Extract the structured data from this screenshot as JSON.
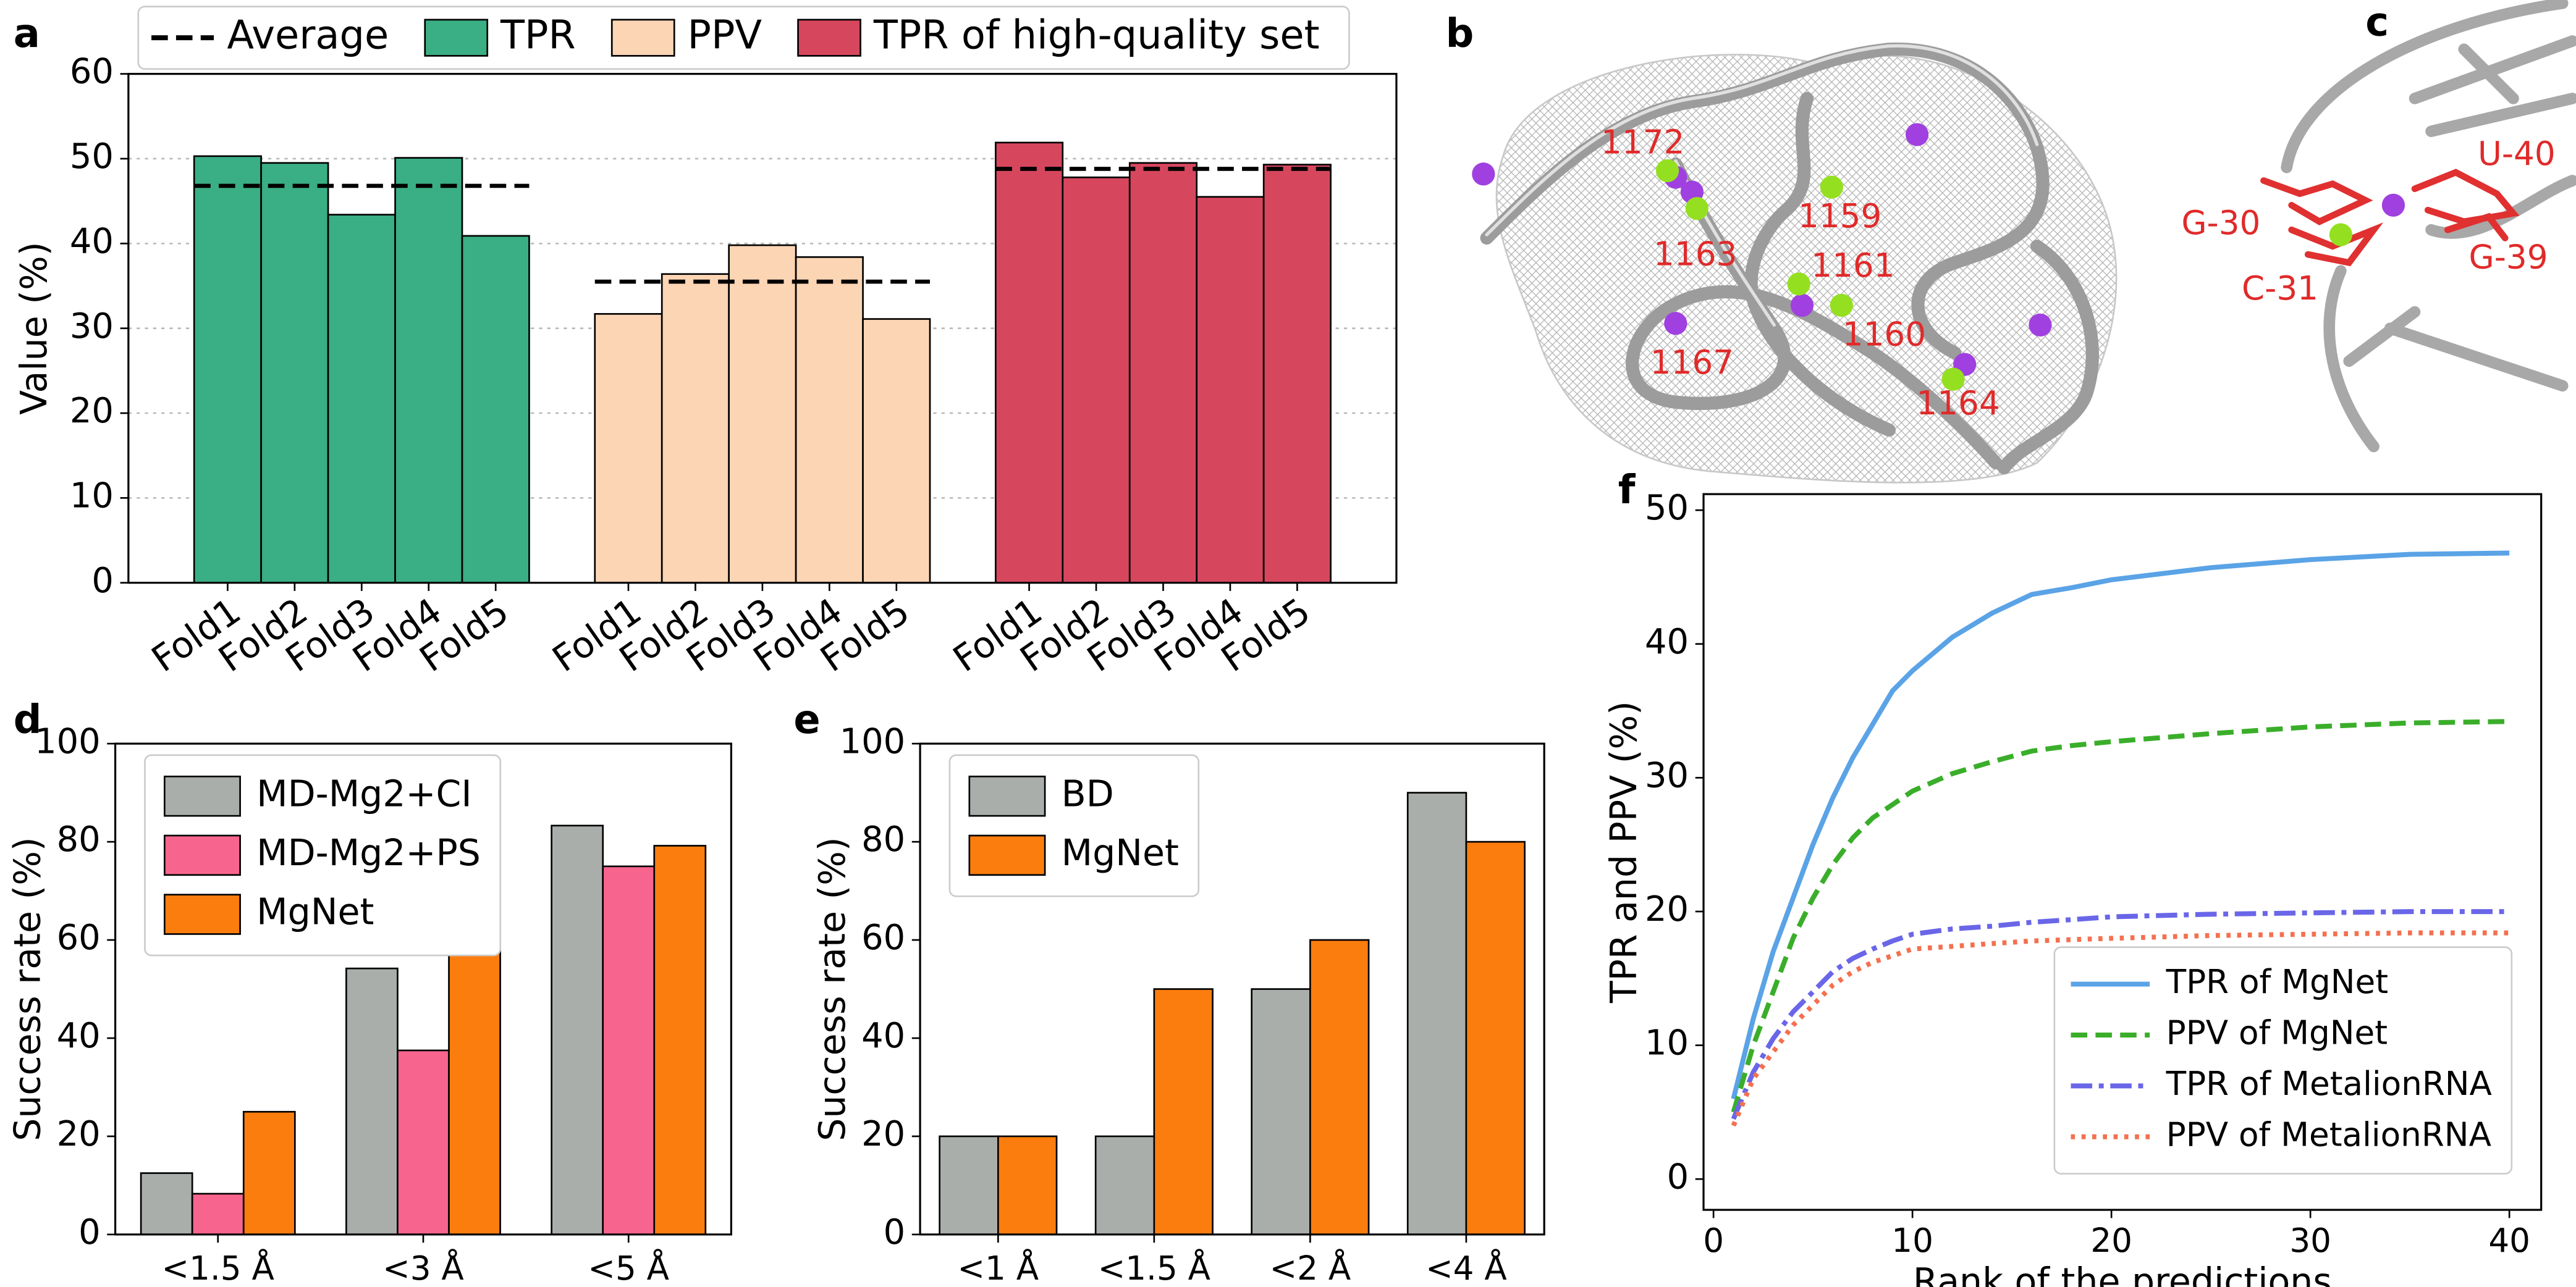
{
  "chart_data": [
    {
      "panel_label": "a",
      "type": "bar",
      "ylabel": "Value (%)",
      "categories": [
        "Fold1",
        "Fold2",
        "Fold3",
        "Fold4",
        "Fold5"
      ],
      "average_label": "Average",
      "series": [
        {
          "name": "TPR",
          "color": "#3aae84",
          "values": [
            50.3,
            49.5,
            43.4,
            50.1,
            40.9
          ],
          "average": 46.8
        },
        {
          "name": "PPV",
          "color": "#fcd5b4",
          "values": [
            31.7,
            36.4,
            39.8,
            38.4,
            31.1
          ],
          "average": 35.5
        },
        {
          "name": "TPR of high-quality set",
          "color": "#d6475e",
          "values": [
            51.9,
            47.8,
            49.5,
            45.5,
            49.3
          ],
          "average": 48.8
        }
      ],
      "ylim": [
        0,
        60
      ],
      "yticks": [
        0,
        10,
        20,
        30,
        40,
        50,
        60
      ],
      "grid": true,
      "legend": "top"
    },
    {
      "panel_label": "d",
      "type": "bar",
      "ylabel": "Success rate (%)",
      "categories": [
        "<1.5 Å",
        "<3 Å",
        "<5 Å"
      ],
      "series": [
        {
          "name": "MD-Mg2+CI",
          "color": "#a9aeab",
          "values": [
            12.5,
            54.2,
            83.3
          ]
        },
        {
          "name": "MD-Mg2+PS",
          "color": "#f7658e",
          "values": [
            8.3,
            37.5,
            75.0
          ]
        },
        {
          "name": "MgNet",
          "color": "#fb7d0e",
          "values": [
            25.0,
            58.3,
            79.2
          ]
        }
      ],
      "ylim": [
        0,
        100
      ],
      "yticks": [
        0,
        20,
        40,
        60,
        80,
        100
      ],
      "grid": false,
      "legend": "upper left"
    },
    {
      "panel_label": "e",
      "type": "bar",
      "ylabel": "Success rate (%)",
      "categories": [
        "<1 Å",
        "<1.5 Å",
        "<2 Å",
        "<4 Å"
      ],
      "series": [
        {
          "name": "BD",
          "color": "#a9aeab",
          "values": [
            20,
            20,
            50,
            90
          ]
        },
        {
          "name": "MgNet",
          "color": "#fb7d0e",
          "values": [
            20,
            50,
            60,
            80
          ]
        }
      ],
      "ylim": [
        0,
        100
      ],
      "yticks": [
        0,
        20,
        40,
        60,
        80,
        100
      ],
      "grid": false,
      "legend": "upper left"
    },
    {
      "panel_label": "f",
      "type": "line",
      "xlabel": "Rank of the predictions",
      "ylabel": "TPR and PPV (%)",
      "x": [
        1,
        2,
        3,
        4,
        5,
        6,
        7,
        8,
        9,
        10,
        12,
        14,
        16,
        18,
        20,
        25,
        30,
        35,
        40
      ],
      "series": [
        {
          "name": "TPR of MgNet",
          "color": "#5aa3e6",
          "dash": "solid",
          "values": [
            6,
            12,
            17,
            21,
            25,
            28.5,
            31.5,
            34,
            36.5,
            38,
            40.5,
            42.3,
            43.7,
            44.2,
            44.8,
            45.7,
            46.3,
            46.7,
            46.8
          ]
        },
        {
          "name": "PPV of MgNet",
          "color": "#3aae2a",
          "dash": "dashed",
          "values": [
            5,
            10,
            14,
            18,
            21,
            23.5,
            25.5,
            27,
            28,
            29,
            30.3,
            31.2,
            32,
            32.4,
            32.7,
            33.3,
            33.8,
            34.1,
            34.2
          ]
        },
        {
          "name": "TPR of MetalionRNA",
          "color": "#6a66e8",
          "dash": "dashdot",
          "values": [
            4.5,
            8,
            10.5,
            12.5,
            14,
            15.5,
            16.5,
            17.2,
            17.8,
            18.3,
            18.7,
            18.9,
            19.2,
            19.4,
            19.6,
            19.8,
            19.9,
            20,
            20
          ]
        },
        {
          "name": "PPV of MetalionRNA",
          "color": "#f4704e",
          "dash": "dotted",
          "values": [
            4,
            7.5,
            9.5,
            11.5,
            13,
            14.5,
            15.5,
            16.2,
            16.7,
            17.2,
            17.4,
            17.6,
            17.8,
            17.9,
            18,
            18.2,
            18.3,
            18.4,
            18.4
          ]
        }
      ],
      "xlim": [
        -0.5,
        41.6
      ],
      "xticks": [
        0,
        10,
        20,
        30,
        40
      ],
      "ylim": [
        -2.3,
        51.2
      ],
      "yticks": [
        0,
        10,
        20,
        30,
        40,
        50
      ],
      "grid": false,
      "legend": "lower right"
    }
  ],
  "structures": [
    {
      "panel_label": "b",
      "labels": [
        "1172",
        "1159",
        "1163",
        "1161",
        "1160",
        "1167",
        "1164"
      ]
    },
    {
      "panel_label": "c",
      "labels": [
        "U-40",
        "G-30",
        "G-39",
        "C-31"
      ]
    }
  ]
}
